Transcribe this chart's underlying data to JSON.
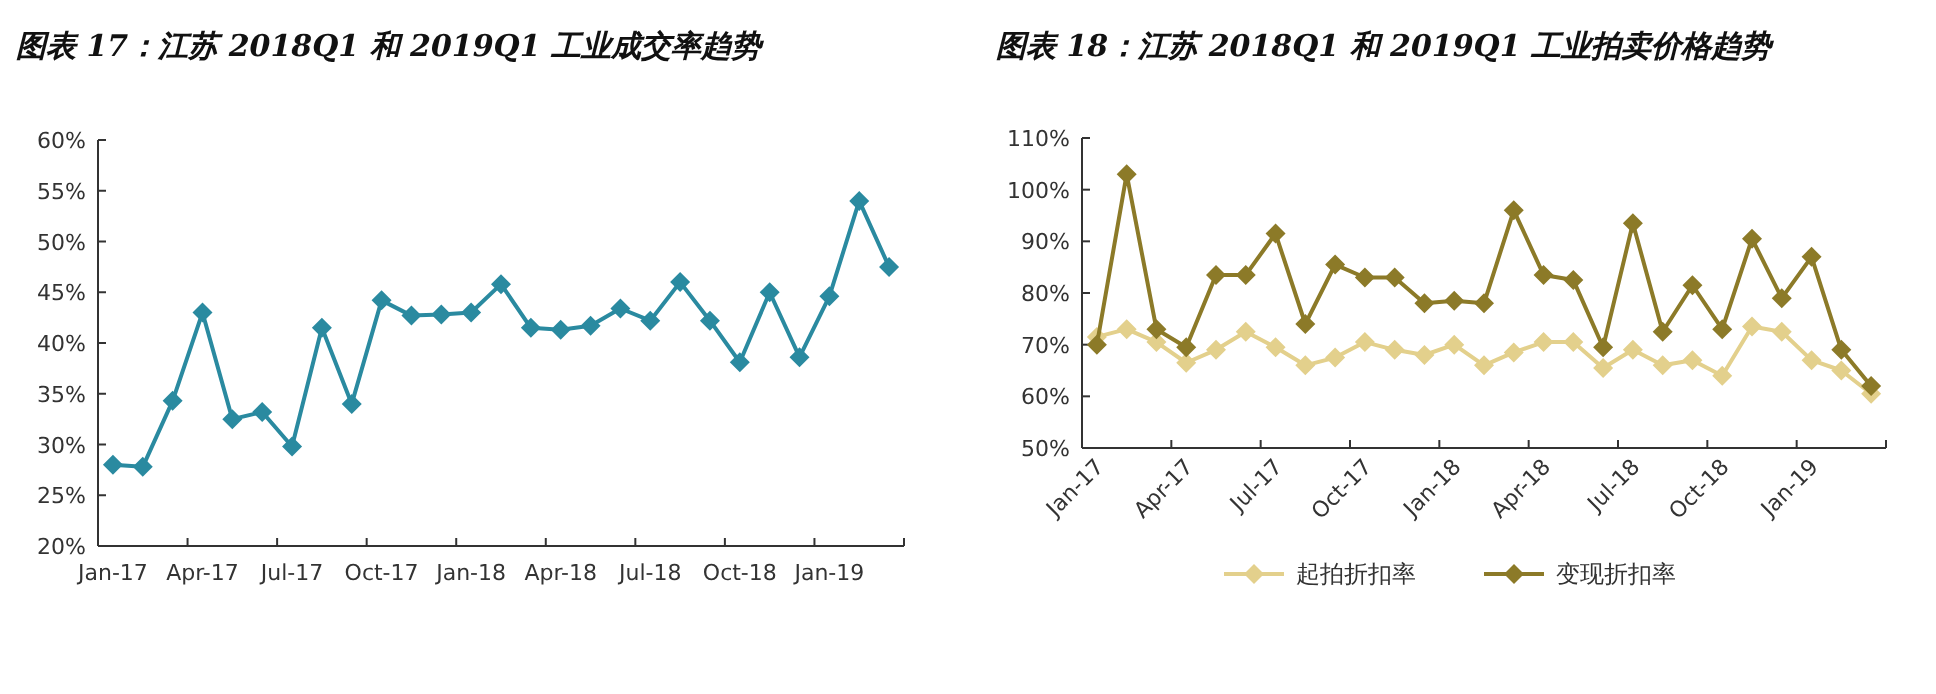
{
  "chart_data": [
    {
      "type": "line",
      "title": "图表 17：江苏 2018Q1 和 2019Q1 工业成交率趋势",
      "categories": [
        "Jan-17",
        null,
        null,
        "Apr-17",
        null,
        null,
        "Jul-17",
        null,
        null,
        "Oct-17",
        null,
        null,
        "Jan-18",
        null,
        null,
        "Apr-18",
        null,
        null,
        "Jul-18",
        null,
        null,
        "Oct-18",
        null,
        null,
        "Jan-19",
        null,
        null
      ],
      "ylim": [
        20,
        60
      ],
      "yticks": [
        {
          "value": 20,
          "label": "20%"
        },
        {
          "value": 25,
          "label": "25%"
        },
        {
          "value": 30,
          "label": "30%"
        },
        {
          "value": 35,
          "label": "35%"
        },
        {
          "value": 40,
          "label": "40%"
        },
        {
          "value": 45,
          "label": "45%"
        },
        {
          "value": 50,
          "label": "50%"
        },
        {
          "value": 55,
          "label": "55%"
        },
        {
          "value": 60,
          "label": "60%"
        }
      ],
      "marker": "diamond",
      "series": [
        {
          "color": "#2a8aa0",
          "values": [
            28,
            27.8,
            34.3,
            43,
            32.5,
            33.2,
            29.8,
            41.5,
            34,
            44.2,
            42.7,
            42.8,
            43,
            45.8,
            41.5,
            41.3,
            41.7,
            43.4,
            42.2,
            46,
            42.2,
            38.1,
            45,
            38.6,
            44.6,
            54,
            47.5
          ]
        }
      ]
    },
    {
      "type": "line",
      "title": "图表 18：江苏 2018Q1 和 2019Q1 工业拍卖价格趋势",
      "categories": [
        "Jan-17",
        null,
        null,
        "Apr-17",
        null,
        null,
        "Jul-17",
        null,
        null,
        "Oct-17",
        null,
        null,
        "Jan-18",
        null,
        null,
        "Apr-18",
        null,
        null,
        "Jul-18",
        null,
        null,
        "Oct-18",
        null,
        null,
        "Jan-19",
        null,
        null
      ],
      "ylim": [
        50,
        110
      ],
      "yticks": [
        {
          "value": 50,
          "label": "50%"
        },
        {
          "value": 60,
          "label": "60%"
        },
        {
          "value": 70,
          "label": "70%"
        },
        {
          "value": 80,
          "label": "80%"
        },
        {
          "value": 90,
          "label": "90%"
        },
        {
          "value": 100,
          "label": "100%"
        },
        {
          "value": 110,
          "label": "110%"
        }
      ],
      "marker": "diamond",
      "legend": "bottom",
      "series": [
        {
          "name": "起拍折扣率",
          "color": "#e3d08c",
          "values": [
            71.5,
            73,
            70.5,
            66.5,
            69,
            72.5,
            69.5,
            66,
            67.5,
            70.5,
            69,
            68,
            70,
            66,
            68.5,
            70.5,
            70.5,
            65.5,
            69,
            66,
            67,
            64,
            73.5,
            72.5,
            67,
            65,
            60.5
          ]
        },
        {
          "name": "变现折扣率",
          "color": "#8c7a28",
          "values": [
            70,
            103,
            73,
            69.5,
            83.5,
            83.5,
            91.5,
            74,
            85.5,
            83,
            83,
            78,
            78.5,
            78,
            96,
            83.5,
            82.5,
            69.5,
            93.5,
            72.5,
            81.5,
            73,
            90.5,
            79,
            87,
            69,
            62
          ]
        }
      ]
    }
  ]
}
